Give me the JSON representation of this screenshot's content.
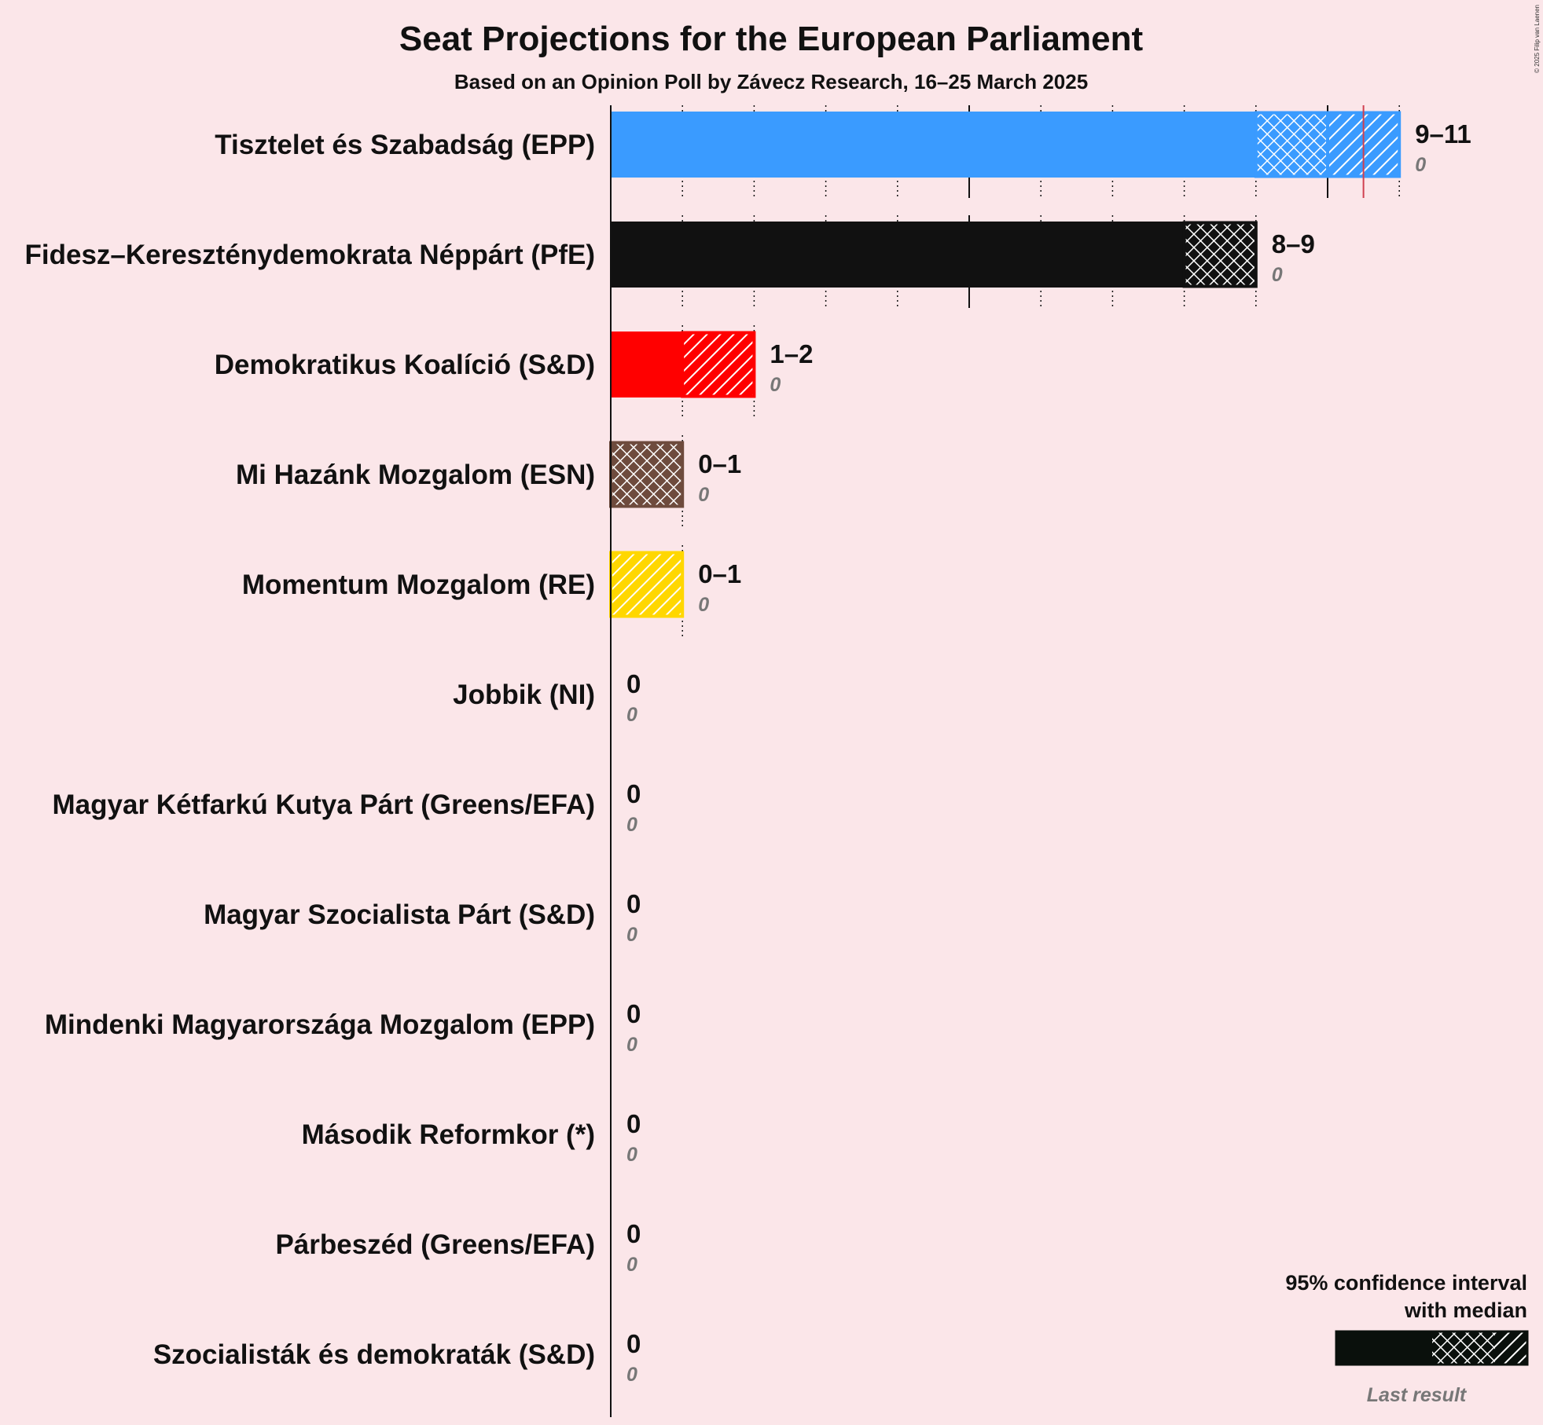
{
  "chart_data": {
    "type": "bar",
    "title": "Seat Projections for the European Parliament",
    "subtitle": "Based on an Opinion Poll by Závecz Research, 16–25 March 2025",
    "copyright": "© 2025 Filip van Laenen",
    "x_range": [
      0,
      11
    ],
    "majority_line": 10.5,
    "series": [
      {
        "party": "Tisztelet és Szabadság (EPP)",
        "color": "#3a9bff",
        "low": 9,
        "median": 10,
        "high": 11,
        "label": "9–11",
        "last_result": "0"
      },
      {
        "party": "Fidesz–Kereszténydemokrata Néppárt (PfE)",
        "color": "#111111",
        "low": 8,
        "median": 9,
        "high": 9,
        "label": "8–9",
        "last_result": "0"
      },
      {
        "party": "Demokratikus Koalíció (S&D)",
        "color": "#ff0000",
        "low": 1,
        "median": 1,
        "high": 2,
        "label": "1–2",
        "last_result": "0"
      },
      {
        "party": "Mi Hazánk Mozgalom (ESN)",
        "color": "#6e4b3d",
        "low": 0,
        "median": 1,
        "high": 1,
        "label": "0–1",
        "last_result": "0"
      },
      {
        "party": "Momentum Mozgalom (RE)",
        "color": "#ffd700",
        "low": 0,
        "median": 0,
        "high": 1,
        "label": "0–1",
        "last_result": "0"
      },
      {
        "party": "Jobbik (NI)",
        "color": "#111111",
        "low": 0,
        "median": 0,
        "high": 0,
        "label": "0",
        "last_result": "0"
      },
      {
        "party": "Magyar Kétfarkú Kutya Párt (Greens/EFA)",
        "color": "#111111",
        "low": 0,
        "median": 0,
        "high": 0,
        "label": "0",
        "last_result": "0"
      },
      {
        "party": "Magyar Szocialista Párt (S&D)",
        "color": "#111111",
        "low": 0,
        "median": 0,
        "high": 0,
        "label": "0",
        "last_result": "0"
      },
      {
        "party": "Mindenki Magyarországa Mozgalom (EPP)",
        "color": "#111111",
        "low": 0,
        "median": 0,
        "high": 0,
        "label": "0",
        "last_result": "0"
      },
      {
        "party": "Második Reformkor (*)",
        "color": "#111111",
        "low": 0,
        "median": 0,
        "high": 0,
        "label": "0",
        "last_result": "0"
      },
      {
        "party": "Párbeszéd (Greens/EFA)",
        "color": "#111111",
        "low": 0,
        "median": 0,
        "high": 0,
        "label": "0",
        "last_result": "0"
      },
      {
        "party": "Szocialisták és demokraták (S&D)",
        "color": "#111111",
        "low": 0,
        "median": 0,
        "high": 0,
        "label": "0",
        "last_result": "0"
      }
    ],
    "legend": {
      "line1": "95% confidence interval",
      "line2": "with median",
      "last_result": "Last result"
    }
  }
}
